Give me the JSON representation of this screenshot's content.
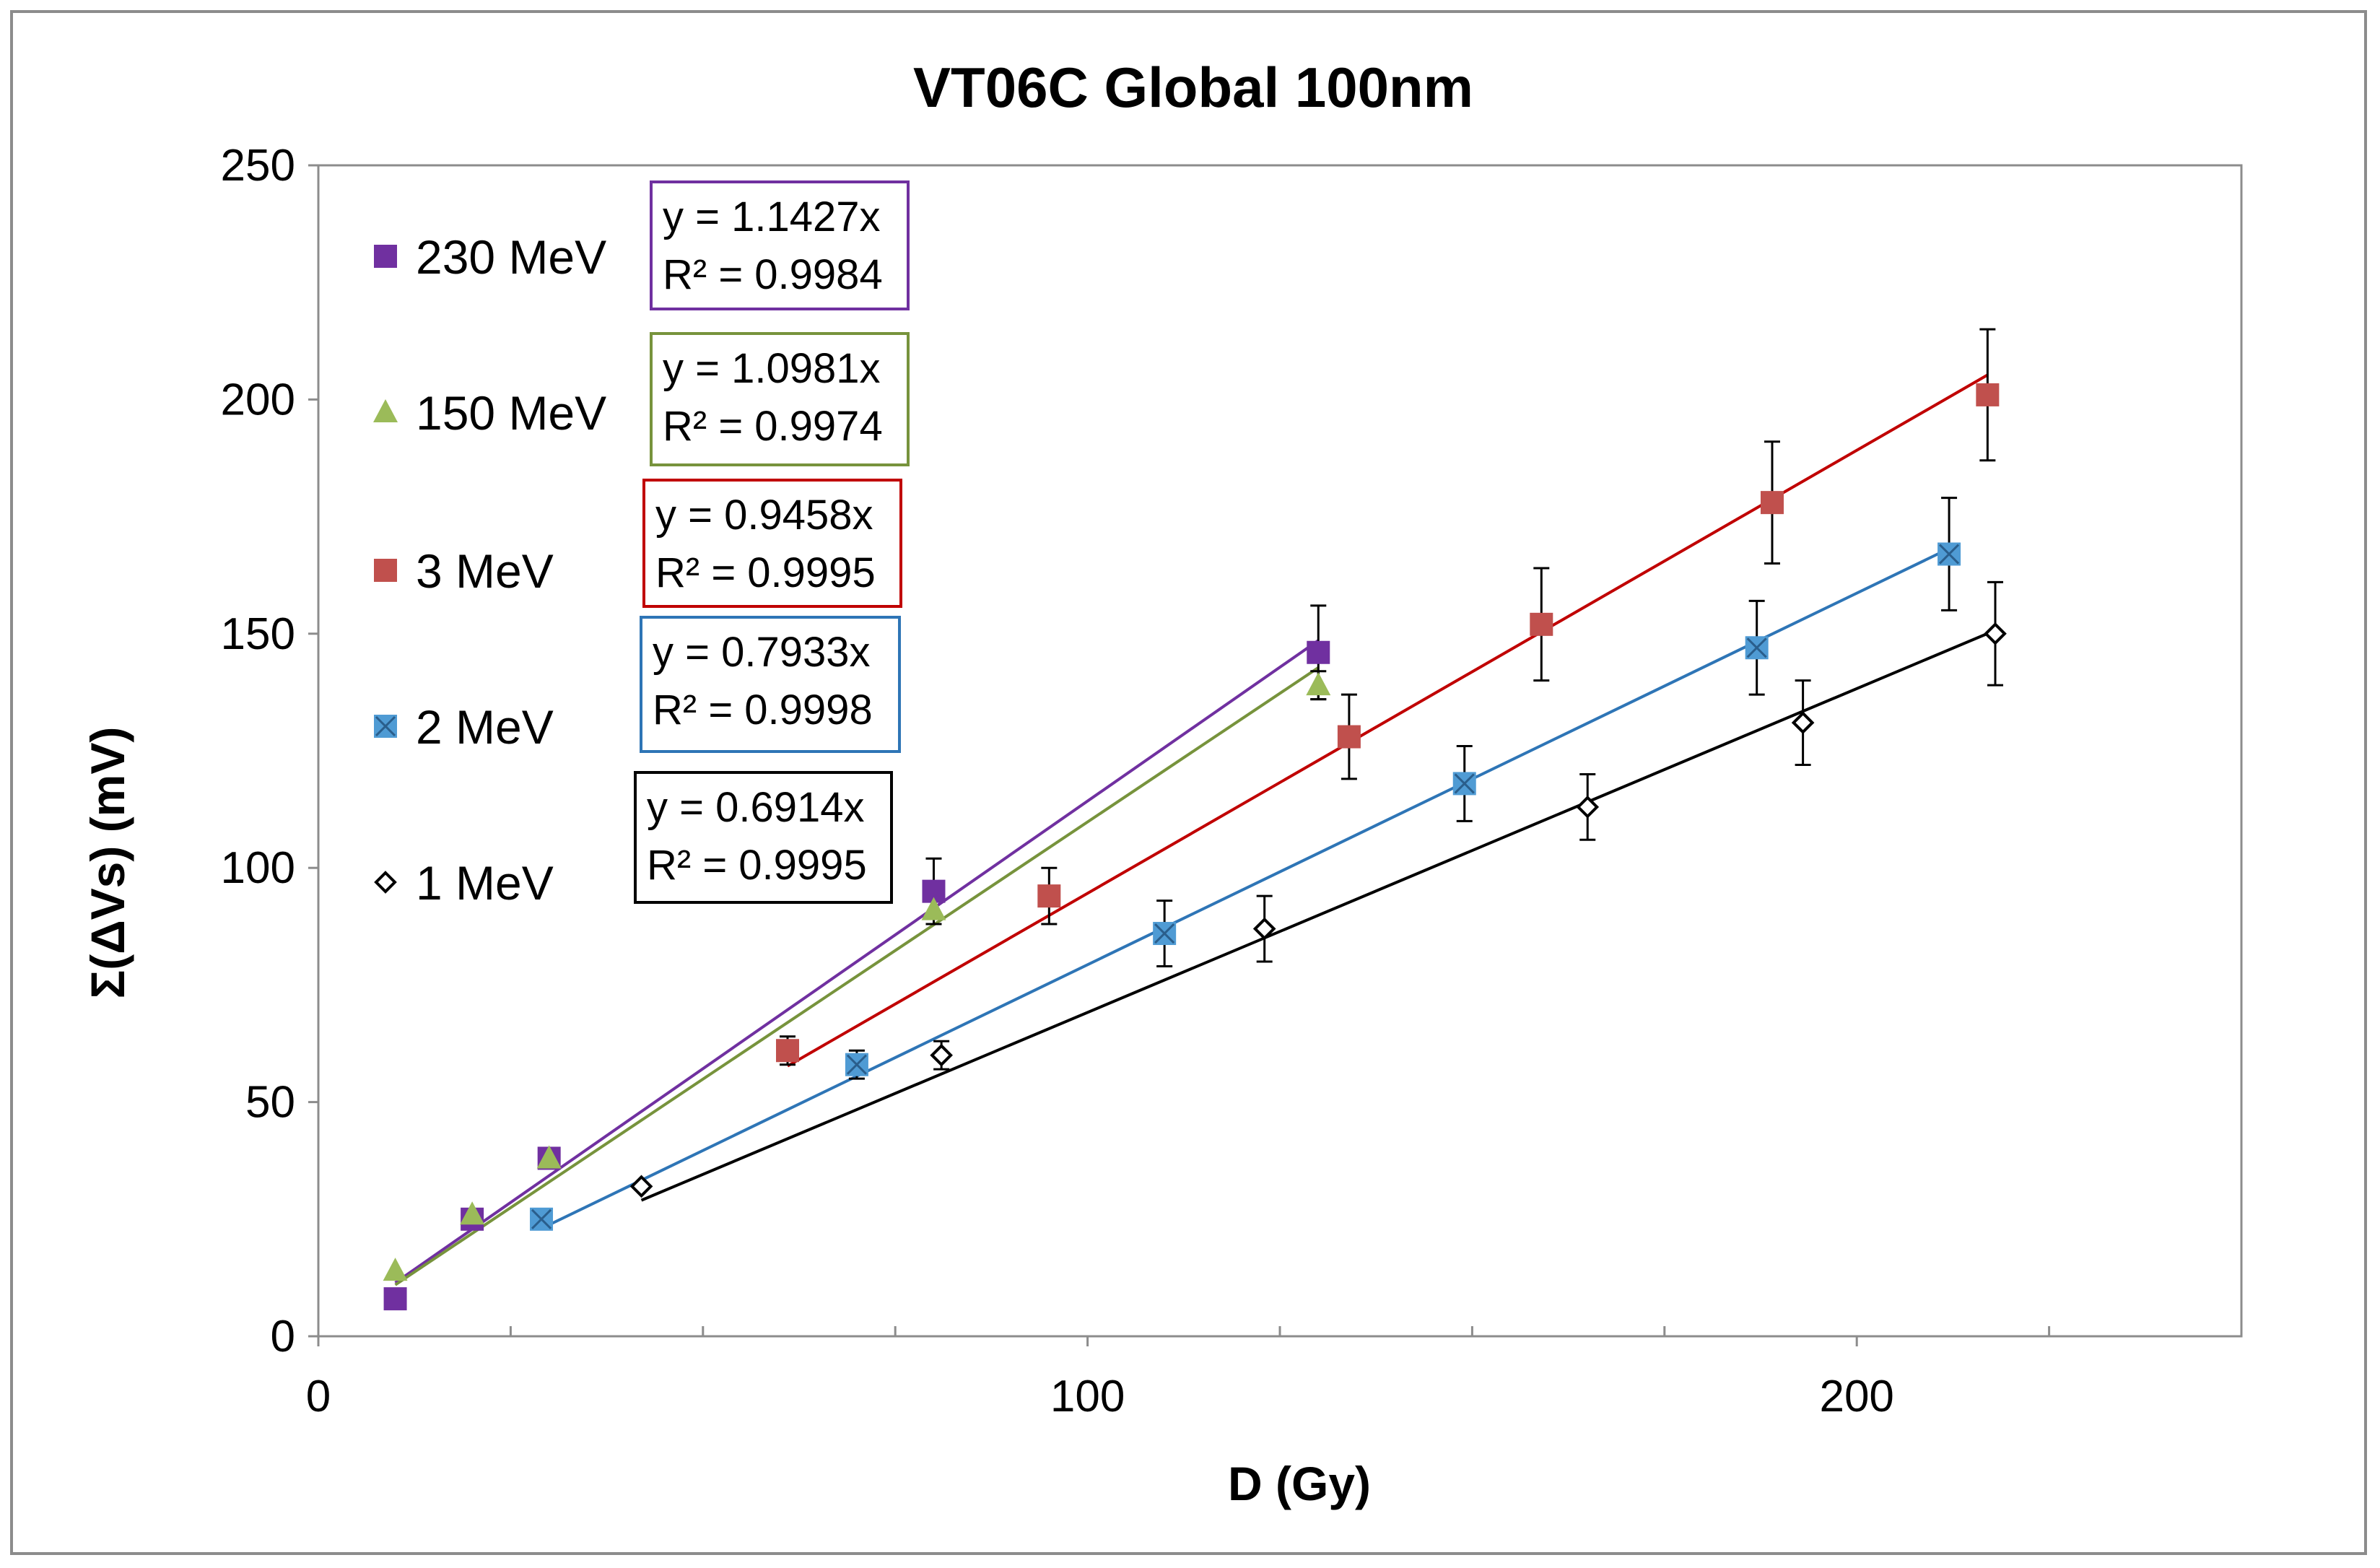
{
  "chart_data": {
    "type": "scatter",
    "title": "VT06C Global 100nm",
    "xlabel": "D (Gy)",
    "ylabel": "Σ(ΔVs) (mV)",
    "xlim": [
      0,
      250
    ],
    "ylim": [
      0,
      250
    ],
    "x_ticks": [
      0,
      100,
      200
    ],
    "x_minor_ticks": [
      25,
      50,
      75,
      125,
      150,
      175,
      225
    ],
    "y_ticks": [
      0,
      50,
      100,
      150,
      200,
      250
    ],
    "grid": false,
    "legend_position": "top-left",
    "series": [
      {
        "name": "230 MeV",
        "marker": "square",
        "color": "#7030A0",
        "x": [
          10,
          20,
          30,
          80,
          130
        ],
        "y": [
          8,
          25,
          38,
          95,
          146
        ],
        "error": [
          0,
          0,
          0,
          7,
          10
        ],
        "fit": {
          "slope": 1.1427,
          "x_range": [
            10,
            130
          ],
          "equation": "y = 1.1427x",
          "r2": "R² = 0.9984"
        }
      },
      {
        "name": "150 MeV",
        "marker": "triangle",
        "color": "#9BBB59",
        "line_color": "#77933C",
        "x": [
          10,
          20,
          30,
          80,
          130
        ],
        "y": [
          14,
          26,
          38,
          91,
          139
        ],
        "error": [
          0,
          0,
          0,
          0,
          3
        ],
        "fit": {
          "slope": 1.0981,
          "x_range": [
            10,
            130
          ],
          "equation": "y = 1.0981x",
          "r2": "R² = 0.9974"
        }
      },
      {
        "name": "3 MeV",
        "marker": "square",
        "color": "#C0504D",
        "line_color": "#C00000",
        "x": [
          61,
          95,
          134,
          159,
          189,
          217
        ],
        "y": [
          61,
          94,
          128,
          152,
          178,
          201
        ],
        "error": [
          3,
          6,
          9,
          12,
          13,
          14
        ],
        "fit": {
          "slope": 0.9458,
          "x_range": [
            61,
            217
          ],
          "equation": "y = 0.9458x",
          "r2": "R² = 0.9995"
        }
      },
      {
        "name": "2 MeV",
        "marker": "square-x",
        "color": "#4F9BD4",
        "line_color": "#2E75B6",
        "x": [
          29,
          70,
          110,
          149,
          187,
          212
        ],
        "y": [
          25,
          58,
          86,
          118,
          147,
          167
        ],
        "error": [
          0,
          3,
          7,
          8,
          10,
          12
        ],
        "fit": {
          "slope": 0.7933,
          "x_range": [
            29,
            212
          ],
          "equation": "y = 0.7933x",
          "r2": "R² = 0.9998"
        }
      },
      {
        "name": "1 MeV",
        "marker": "diamond",
        "color": "#000000",
        "x": [
          42,
          81,
          123,
          165,
          193,
          218
        ],
        "y": [
          32,
          60,
          87,
          113,
          131,
          150
        ],
        "error": [
          0,
          3,
          7,
          7,
          9,
          11
        ],
        "fit": {
          "slope": 0.6914,
          "x_range": [
            42,
            218
          ],
          "equation": "y = 0.6914x",
          "r2": "R² = 0.9995"
        }
      }
    ]
  }
}
